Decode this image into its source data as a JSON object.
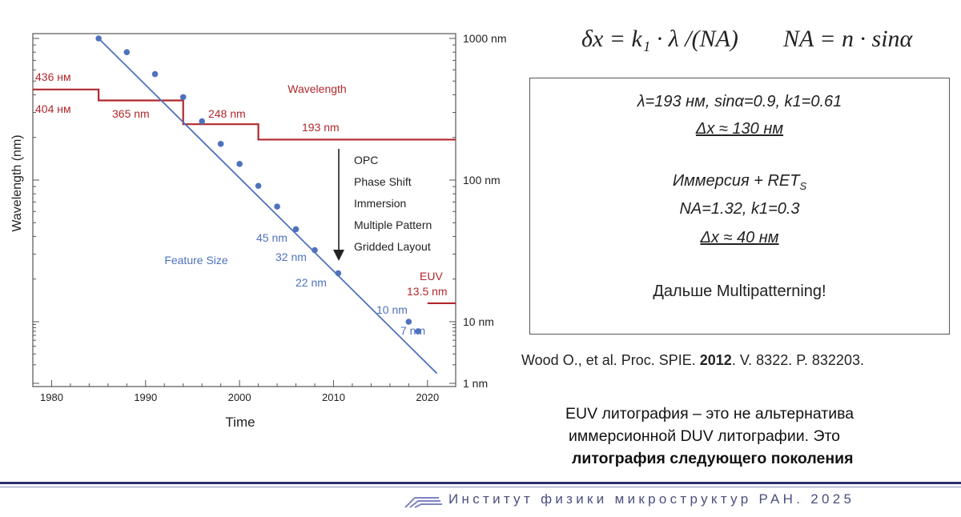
{
  "chart_data": {
    "type": "line",
    "xlabel": "Time",
    "ylabel": "Wavelength (nm)",
    "xlim": [
      1978,
      2023
    ],
    "ylim": [
      1,
      1000
    ],
    "y_scale": "log",
    "x_ticks": [
      "1980",
      "1990",
      "2000",
      "2010",
      "2020"
    ],
    "y_ticks": [
      "1000 nm",
      "100 nm",
      "10 nm",
      "1 nm"
    ],
    "wavelength": {
      "series_label": "Wavelength",
      "color": "#b0282c",
      "steps": [
        {
          "x": [
            1978,
            1985
          ],
          "y": 436
        },
        {
          "x": [
            1985,
            1994
          ],
          "y": 365
        },
        {
          "x": [
            1994,
            2002
          ],
          "y": 248
        },
        {
          "x": [
            2002,
            2023
          ],
          "y": 193
        },
        {
          "x": [
            2020,
            2023
          ],
          "y": 13.5
        }
      ],
      "step_labels": [
        "436 нм",
        "404 нм",
        "365 nm",
        "248 nm",
        "193 nm"
      ],
      "euv_label": "EUV",
      "euv_value_label": "13.5 nm"
    },
    "feature_size": {
      "series_label": "Feature Size",
      "color": "#4f72bd",
      "trend_line": [
        [
          1985,
          1000
        ],
        [
          2021,
          1.45
        ]
      ],
      "points": [
        {
          "x": 1985,
          "y": 1000
        },
        {
          "x": 1988,
          "y": 800
        },
        {
          "x": 1991,
          "y": 560
        },
        {
          "x": 1994,
          "y": 385
        },
        {
          "x": 1996,
          "y": 260
        },
        {
          "x": 1998,
          "y": 180
        },
        {
          "x": 2000,
          "y": 130
        },
        {
          "x": 2002,
          "y": 91
        },
        {
          "x": 2004,
          "y": 65
        },
        {
          "x": 2006,
          "y": 45
        },
        {
          "x": 2008,
          "y": 32
        },
        {
          "x": 2010.5,
          "y": 22
        },
        {
          "x": 2018,
          "y": 10
        },
        {
          "x": 2019,
          "y": 7
        }
      ],
      "point_labels": [
        "45 nm",
        "32 nm",
        "22 nm",
        "10 nm",
        "7 nm"
      ]
    },
    "annotation_lines": [
      "OPC",
      "Phase Shift",
      "Immersion",
      "Multiple Pattern",
      "Gridded Layout"
    ]
  },
  "formula": {
    "resolution": "δx = k₁ · λ /(NA)",
    "na": "NA = n · sinα"
  },
  "infobox": {
    "line1": "λ=193 нм, sinα=0.9, k1=0.61",
    "line2": "Δx ≈ 130 нм",
    "line3_main": "Иммерсия + RET",
    "line3_sub": "S",
    "line4": "NA=1.32, k1=0.3",
    "line5": "Δx ≈ 40 нм",
    "line6": "Дальше Multipatterning!"
  },
  "reference": {
    "before": "Wood O., et al. Proc. SPIE. ",
    "year": "2012",
    "after": ". V. 8322. P. 832203."
  },
  "note": {
    "line1": "EUV литография – это не альтернатива",
    "line2": "иммерсионной DUV литографии. Это",
    "line3": "литография следующего поколения"
  },
  "footer": {
    "institute": "Институт физики микроструктур РАН. 2025"
  }
}
